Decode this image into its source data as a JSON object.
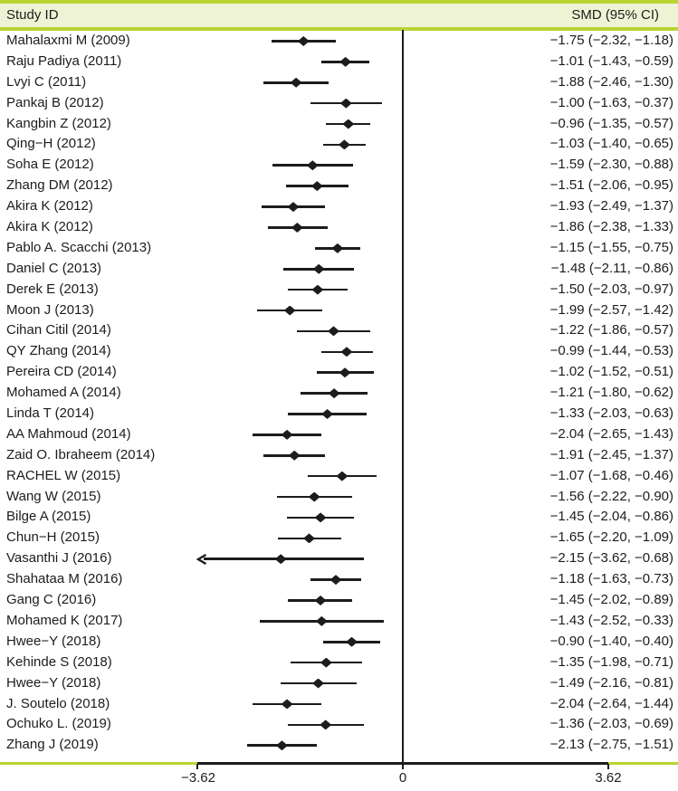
{
  "header": {
    "left_label": "Study ID",
    "right_label": "SMD (95% CI)"
  },
  "colors": {
    "accent_line": "#b9d333",
    "header_band": "#eff3d5",
    "text": "#1c1c1c",
    "marker": "#1c1c1c"
  },
  "chart_data": {
    "type": "forest",
    "title": "",
    "xlabel": "",
    "xlim": [
      -3.62,
      3.62
    ],
    "zero_reference": 0,
    "legend_position": "none",
    "grid": false,
    "xticks": [
      {
        "value": -3.62,
        "label": "−3.62"
      },
      {
        "value": 0,
        "label": "0"
      },
      {
        "value": 3.62,
        "label": "3.62"
      }
    ],
    "studies": [
      {
        "label": "Mahalaxmi M (2009)",
        "smd": -1.75,
        "lo": -2.32,
        "hi": -1.18,
        "arrow_lo": false
      },
      {
        "label": "Raju Padiya (2011)",
        "smd": -1.01,
        "lo": -1.43,
        "hi": -0.59,
        "arrow_lo": false
      },
      {
        "label": "Lvyi C (2011)",
        "smd": -1.88,
        "lo": -2.46,
        "hi": -1.3,
        "arrow_lo": false
      },
      {
        "label": "Pankaj B (2012)",
        "smd": -1.0,
        "lo": -1.63,
        "hi": -0.37,
        "arrow_lo": false
      },
      {
        "label": "Kangbin Z (2012)",
        "smd": -0.96,
        "lo": -1.35,
        "hi": -0.57,
        "arrow_lo": false
      },
      {
        "label": "Qing−H (2012)",
        "smd": -1.03,
        "lo": -1.4,
        "hi": -0.65,
        "arrow_lo": false
      },
      {
        "label": "Soha E (2012)",
        "smd": -1.59,
        "lo": -2.3,
        "hi": -0.88,
        "arrow_lo": false
      },
      {
        "label": "Zhang DM (2012)",
        "smd": -1.51,
        "lo": -2.06,
        "hi": -0.95,
        "arrow_lo": false
      },
      {
        "label": "Akira K (2012)",
        "smd": -1.93,
        "lo": -2.49,
        "hi": -1.37,
        "arrow_lo": false
      },
      {
        "label": "Akira K (2012)",
        "smd": -1.86,
        "lo": -2.38,
        "hi": -1.33,
        "arrow_lo": false
      },
      {
        "label": "Pablo A. Scacchi (2013)",
        "smd": -1.15,
        "lo": -1.55,
        "hi": -0.75,
        "arrow_lo": false
      },
      {
        "label": "Daniel C (2013)",
        "smd": -1.48,
        "lo": -2.11,
        "hi": -0.86,
        "arrow_lo": false
      },
      {
        "label": "Derek E (2013)",
        "smd": -1.5,
        "lo": -2.03,
        "hi": -0.97,
        "arrow_lo": false
      },
      {
        "label": "Moon J (2013)",
        "smd": -1.99,
        "lo": -2.57,
        "hi": -1.42,
        "arrow_lo": false
      },
      {
        "label": "Cihan Citil (2014)",
        "smd": -1.22,
        "lo": -1.86,
        "hi": -0.57,
        "arrow_lo": false
      },
      {
        "label": "QY Zhang (2014)",
        "smd": -0.99,
        "lo": -1.44,
        "hi": -0.53,
        "arrow_lo": false
      },
      {
        "label": "Pereira CD (2014)",
        "smd": -1.02,
        "lo": -1.52,
        "hi": -0.51,
        "arrow_lo": false
      },
      {
        "label": "Mohamed A (2014)",
        "smd": -1.21,
        "lo": -1.8,
        "hi": -0.62,
        "arrow_lo": false
      },
      {
        "label": "Linda T (2014)",
        "smd": -1.33,
        "lo": -2.03,
        "hi": -0.63,
        "arrow_lo": false
      },
      {
        "label": "AA Mahmoud (2014)",
        "smd": -2.04,
        "lo": -2.65,
        "hi": -1.43,
        "arrow_lo": false
      },
      {
        "label": "Zaid O. Ibraheem (2014)",
        "smd": -1.91,
        "lo": -2.45,
        "hi": -1.37,
        "arrow_lo": false
      },
      {
        "label": "RACHEL W (2015)",
        "smd": -1.07,
        "lo": -1.68,
        "hi": -0.46,
        "arrow_lo": false
      },
      {
        "label": "Wang W (2015)",
        "smd": -1.56,
        "lo": -2.22,
        "hi": -0.9,
        "arrow_lo": false
      },
      {
        "label": "Bilge A (2015)",
        "smd": -1.45,
        "lo": -2.04,
        "hi": -0.86,
        "arrow_lo": false
      },
      {
        "label": "Chun−H (2015)",
        "smd": -1.65,
        "lo": -2.2,
        "hi": -1.09,
        "arrow_lo": false
      },
      {
        "label": "Vasanthi J (2016)",
        "smd": -2.15,
        "lo": -3.62,
        "hi": -0.68,
        "arrow_lo": true
      },
      {
        "label": "Shahataa M (2016)",
        "smd": -1.18,
        "lo": -1.63,
        "hi": -0.73,
        "arrow_lo": false
      },
      {
        "label": "Gang C (2016)",
        "smd": -1.45,
        "lo": -2.02,
        "hi": -0.89,
        "arrow_lo": false
      },
      {
        "label": "Mohamed K (2017)",
        "smd": -1.43,
        "lo": -2.52,
        "hi": -0.33,
        "arrow_lo": false
      },
      {
        "label": "Hwee−Y (2018)",
        "smd": -0.9,
        "lo": -1.4,
        "hi": -0.4,
        "arrow_lo": false
      },
      {
        "label": "Kehinde S (2018)",
        "smd": -1.35,
        "lo": -1.98,
        "hi": -0.71,
        "arrow_lo": false
      },
      {
        "label": "Hwee−Y (2018)",
        "smd": -1.49,
        "lo": -2.16,
        "hi": -0.81,
        "arrow_lo": false
      },
      {
        "label": "J. Soutelo (2018)",
        "smd": -2.04,
        "lo": -2.64,
        "hi": -1.44,
        "arrow_lo": false
      },
      {
        "label": "Ochuko L. (2019)",
        "smd": -1.36,
        "lo": -2.03,
        "hi": -0.69,
        "arrow_lo": false
      },
      {
        "label": "Zhang J (2019)",
        "smd": -2.13,
        "lo": -2.75,
        "hi": -1.51,
        "arrow_lo": false
      }
    ]
  }
}
